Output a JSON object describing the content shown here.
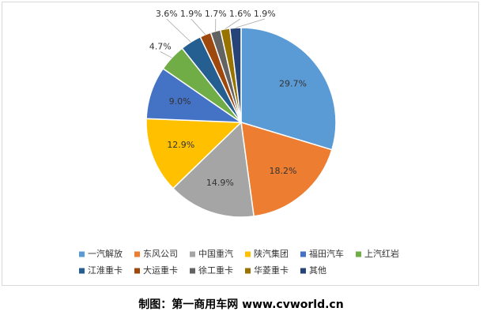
{
  "chart_data": {
    "type": "pie",
    "categories": [
      "一汽解放",
      "东风公司",
      "中国重汽",
      "陕汽集团",
      "福田汽车",
      "上汽红岩",
      "江淮重卡",
      "大运重卡",
      "徐工重卡",
      "华菱重卡",
      "其他"
    ],
    "values": [
      29.7,
      18.2,
      14.9,
      12.9,
      9.0,
      4.7,
      3.6,
      1.9,
      1.7,
      1.6,
      1.9
    ],
    "value_labels": [
      "29.7%",
      "18.2%",
      "14.9%",
      "12.9%",
      "9.0%",
      "4.7%",
      "3.6%",
      "1.9%",
      "1.7%",
      "1.6%",
      "1.9%"
    ],
    "colors": [
      "#5b9bd5",
      "#ed7d31",
      "#a5a5a5",
      "#ffc000",
      "#4472c4",
      "#70ad47",
      "#255e91",
      "#9e480e",
      "#636363",
      "#997300",
      "#264478"
    ],
    "legend": "bottom"
  },
  "footer": "制图：第一商用车网 www.cvworld.cn"
}
